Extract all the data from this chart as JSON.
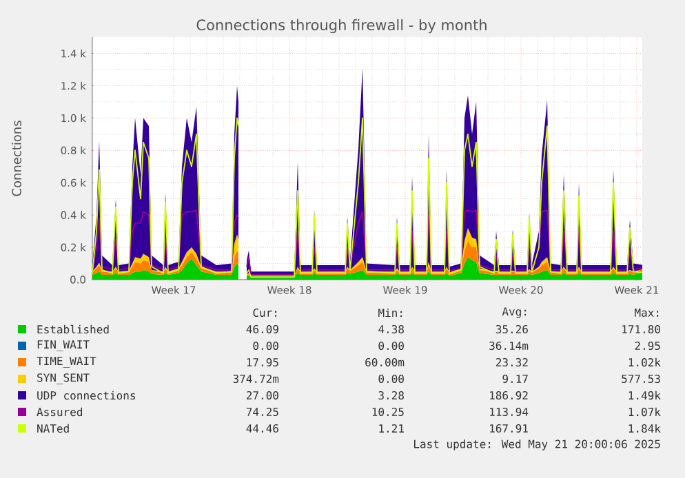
{
  "chart_data": {
    "type": "area",
    "stacked": true,
    "title": "Connections through firewall - by month",
    "ylabel": "Connections",
    "x": [
      "2025-04-18T14:00",
      "2025-04-18T20:00",
      "2025-04-19T00:00",
      "2025-04-19T04:00",
      "2025-04-19T19:00",
      "2025-04-20T00:00",
      "2025-04-20T04:00",
      "2025-04-20T19:00",
      "2025-04-21T00:00",
      "2025-04-21T04:00",
      "2025-04-21T12:00",
      "2025-04-21T16:00",
      "2025-04-22T00:00",
      "2025-04-22T04:00",
      "2025-04-22T21:00",
      "2025-04-23T00:00",
      "2025-04-23T04:00",
      "2025-04-23T19:00",
      "2025-04-24T00:00",
      "2025-04-24T07:00",
      "2025-04-24T14:00",
      "2025-04-24T21:00",
      "2025-04-25T04:00",
      "2025-04-26T02:00",
      "2025-04-27T00:00",
      "2025-04-27T04:00",
      "2025-04-27T08:00",
      "2025-04-27T10:00",
      "2025-04-27T14:00",
      "2025-04-27T22:00",
      "2025-04-28T01:00",
      "2025-04-28T04:00",
      "2025-04-30T19:00",
      "2025-05-01T00:00",
      "2025-05-01T04:00",
      "2025-05-01T21:00",
      "2025-05-02T00:00",
      "2025-05-02T04:00",
      "2025-05-03T21:00",
      "2025-05-04T00:00",
      "2025-05-04T04:00",
      "2025-05-04T16:00",
      "2025-05-04T22:00",
      "2025-05-05T04:00",
      "2025-05-06T21:00",
      "2025-05-07T00:00",
      "2025-05-07T04:00",
      "2025-05-07T19:00",
      "2025-05-07T22:00",
      "2025-05-08T02:00",
      "2025-05-08T19:00",
      "2025-05-08T22:00",
      "2025-05-09T02:00",
      "2025-05-09T21:00",
      "2025-05-10T00:00",
      "2025-05-10T04:00",
      "2025-05-10T21:00",
      "2025-05-11T02:00",
      "2025-05-11T07:00",
      "2025-05-11T13:00",
      "2025-05-11T19:00",
      "2025-05-12T00:00",
      "2025-05-12T21:00",
      "2025-05-13T00:00",
      "2025-05-13T04:00",
      "2025-05-13T21:00",
      "2025-05-14T00:00",
      "2025-05-14T04:00",
      "2025-05-14T21:00",
      "2025-05-15T00:00",
      "2025-05-15T04:00",
      "2025-05-15T14:00",
      "2025-05-15T18:00",
      "2025-05-16T02:00",
      "2025-05-16T07:00",
      "2025-05-16T22:00",
      "2025-05-17T02:00",
      "2025-05-17T07:00",
      "2025-05-17T21:00",
      "2025-05-18T00:00",
      "2025-05-18T04:00",
      "2025-05-19T22:00",
      "2025-05-20T02:00",
      "2025-05-20T07:00",
      "2025-05-20T22:00",
      "2025-05-21T02:00",
      "2025-05-21T07:00",
      "2025-05-21T20:00"
    ],
    "xlim": [
      "2025-04-18T14:00",
      "2025-05-21T20:00"
    ],
    "ylim": [
      0,
      1500
    ],
    "xticks": [
      {
        "value": "2025-04-23T12:00",
        "label": "Week 17"
      },
      {
        "value": "2025-04-30T12:00",
        "label": "Week 18"
      },
      {
        "value": "2025-05-07T12:00",
        "label": "Week 19"
      },
      {
        "value": "2025-05-14T12:00",
        "label": "Week 20"
      },
      {
        "value": "2025-05-21T12:00",
        "label": "Week 21"
      }
    ],
    "yticks": [
      {
        "value": 0,
        "label": "0.0"
      },
      {
        "value": 200,
        "label": "0.2 k"
      },
      {
        "value": 400,
        "label": "0.4 k"
      },
      {
        "value": 600,
        "label": "0.6 k"
      },
      {
        "value": 800,
        "label": "0.8 k"
      },
      {
        "value": 1000,
        "label": "1.0 k"
      },
      {
        "value": 1200,
        "label": "1.2 k"
      },
      {
        "value": 1400,
        "label": "1.4 k"
      }
    ],
    "grid": true,
    "legend": "bottom",
    "series": [
      {
        "name": "Established",
        "color": "#00cc00",
        "values": [
          30,
          40,
          50,
          30,
          30,
          40,
          30,
          30,
          40,
          50,
          50,
          60,
          50,
          35,
          30,
          40,
          30,
          40,
          60,
          100,
          130,
          90,
          50,
          30,
          30,
          80,
          100,
          90,
          null,
          20,
          25,
          20,
          20,
          40,
          30,
          30,
          40,
          30,
          30,
          40,
          35,
          50,
          60,
          30,
          30,
          40,
          30,
          30,
          40,
          30,
          30,
          50,
          30,
          30,
          40,
          25,
          40,
          100,
          140,
          120,
          110,
          40,
          30,
          30,
          30,
          30,
          30,
          30,
          30,
          35,
          30,
          40,
          50,
          60,
          30,
          30,
          40,
          30,
          30,
          40,
          30,
          30,
          40,
          30,
          30,
          35,
          30,
          46
        ]
      },
      {
        "name": "FIN_WAIT",
        "color": "#0066b3",
        "values": [
          null,
          null,
          null,
          null,
          null,
          null,
          null,
          null,
          null,
          null,
          null,
          null,
          null,
          null,
          null,
          null,
          null,
          null,
          null,
          null,
          null,
          null,
          null,
          null,
          null,
          null,
          null,
          null,
          null,
          null,
          null,
          null,
          null,
          null,
          null,
          null,
          null,
          null,
          null,
          null,
          null,
          null,
          null,
          null,
          null,
          null,
          null,
          null,
          null,
          null,
          null,
          null,
          null,
          null,
          null,
          null,
          null,
          null,
          null,
          null,
          null,
          null,
          null,
          null,
          null,
          null,
          null,
          null,
          null,
          null,
          null,
          null,
          null,
          null,
          null,
          null,
          null,
          null,
          null,
          null,
          null,
          null,
          null,
          null,
          null,
          null,
          null,
          null
        ]
      },
      {
        "name": "TIME_WAIT",
        "color": "#ff8000",
        "values": [
          15,
          30,
          40,
          20,
          15,
          30,
          15,
          20,
          40,
          60,
          50,
          60,
          60,
          20,
          15,
          30,
          15,
          20,
          30,
          40,
          40,
          40,
          20,
          15,
          15,
          60,
          80,
          70,
          null,
          10,
          10,
          5,
          5,
          30,
          15,
          15,
          20,
          15,
          15,
          30,
          20,
          40,
          50,
          15,
          15,
          20,
          15,
          15,
          30,
          15,
          15,
          40,
          15,
          15,
          30,
          15,
          20,
          80,
          100,
          80,
          90,
          20,
          15,
          20,
          15,
          15,
          20,
          15,
          15,
          20,
          15,
          30,
          40,
          50,
          15,
          15,
          30,
          15,
          15,
          30,
          15,
          15,
          30,
          15,
          15,
          20,
          15,
          18
        ]
      },
      {
        "name": "SYN_SENT",
        "color": "#ffcc00",
        "values": [
          5,
          10,
          15,
          5,
          5,
          10,
          5,
          5,
          20,
          30,
          30,
          40,
          30,
          5,
          5,
          10,
          5,
          10,
          20,
          30,
          30,
          30,
          10,
          5,
          5,
          80,
          100,
          90,
          null,
          5,
          5,
          2,
          2,
          10,
          5,
          5,
          10,
          5,
          5,
          10,
          5,
          20,
          30,
          5,
          5,
          10,
          5,
          5,
          10,
          5,
          5,
          20,
          5,
          5,
          10,
          5,
          10,
          60,
          80,
          60,
          50,
          10,
          5,
          5,
          5,
          5,
          5,
          5,
          5,
          10,
          5,
          10,
          20,
          30,
          5,
          5,
          10,
          5,
          5,
          10,
          5,
          5,
          10,
          5,
          5,
          5,
          5,
          0.4
        ]
      },
      {
        "name": "UDP connections",
        "color": "#330099",
        "values": [
          40,
          320,
          755,
          95,
          40,
          420,
          40,
          45,
          600,
          860,
          520,
          840,
          810,
          90,
          40,
          460,
          40,
          40,
          590,
          830,
          650,
          910,
          70,
          40,
          50,
          680,
          920,
          850,
          null,
          85,
          140,
          23,
          23,
          650,
          40,
          40,
          360,
          40,
          40,
          310,
          60,
          700,
          1170,
          50,
          40,
          320,
          40,
          40,
          560,
          40,
          40,
          790,
          40,
          40,
          600,
          35,
          30,
          760,
          820,
          640,
          850,
          80,
          40,
          245,
          40,
          40,
          255,
          40,
          40,
          345,
          50,
          220,
          660,
          970,
          50,
          40,
          570,
          40,
          40,
          520,
          40,
          40,
          600,
          40,
          40,
          310,
          50,
          27
        ]
      },
      {
        "name": "Assured",
        "type": "line",
        "color": "#990099",
        "values": [
          60,
          200,
          380,
          80,
          60,
          250,
          60,
          70,
          300,
          350,
          350,
          420,
          400,
          90,
          60,
          250,
          60,
          80,
          400,
          420,
          420,
          430,
          90,
          60,
          60,
          350,
          400,
          380,
          null,
          80,
          140,
          30,
          30,
          300,
          60,
          60,
          200,
          60,
          60,
          200,
          80,
          350,
          420,
          60,
          60,
          200,
          60,
          60,
          300,
          60,
          60,
          400,
          60,
          60,
          300,
          55,
          70,
          420,
          430,
          420,
          430,
          90,
          60,
          150,
          60,
          60,
          150,
          60,
          60,
          250,
          60,
          200,
          420,
          430,
          60,
          60,
          300,
          60,
          60,
          300,
          60,
          60,
          300,
          60,
          60,
          180,
          60,
          74
        ]
      },
      {
        "name": "NATed",
        "type": "line",
        "color": "#ccff00",
        "values": [
          40,
          300,
          680,
          60,
          40,
          450,
          40,
          50,
          600,
          800,
          500,
          850,
          750,
          80,
          40,
          480,
          40,
          60,
          600,
          800,
          700,
          900,
          80,
          40,
          50,
          750,
          1000,
          950,
          null,
          40,
          60,
          15,
          15,
          550,
          40,
          40,
          400,
          40,
          40,
          350,
          60,
          600,
          1000,
          50,
          40,
          350,
          40,
          40,
          550,
          40,
          40,
          750,
          40,
          40,
          600,
          35,
          60,
          800,
          900,
          700,
          850,
          80,
          40,
          250,
          40,
          40,
          280,
          40,
          40,
          380,
          50,
          200,
          600,
          950,
          50,
          40,
          550,
          40,
          40,
          520,
          40,
          40,
          600,
          40,
          40,
          320,
          50,
          44
        ]
      }
    ],
    "annotations": [
      "Cur:",
      "Min:",
      "Avg:",
      "Max:",
      "46.09",
      "4.38",
      "35.26",
      "171.80",
      "0.00",
      "0.00",
      "36.14m",
      "2.95",
      "17.95",
      "60.00m",
      "23.32",
      "1.02k",
      "374.72m",
      "0.00",
      "9.17",
      "577.53",
      "27.00",
      "3.28",
      "186.92",
      "1.49k",
      "74.25",
      "10.25",
      "113.94",
      "1.07k",
      "44.46",
      "1.21",
      "167.91",
      "1.84k",
      "Last update: Wed May 21 20:00:06 2025"
    ]
  }
}
